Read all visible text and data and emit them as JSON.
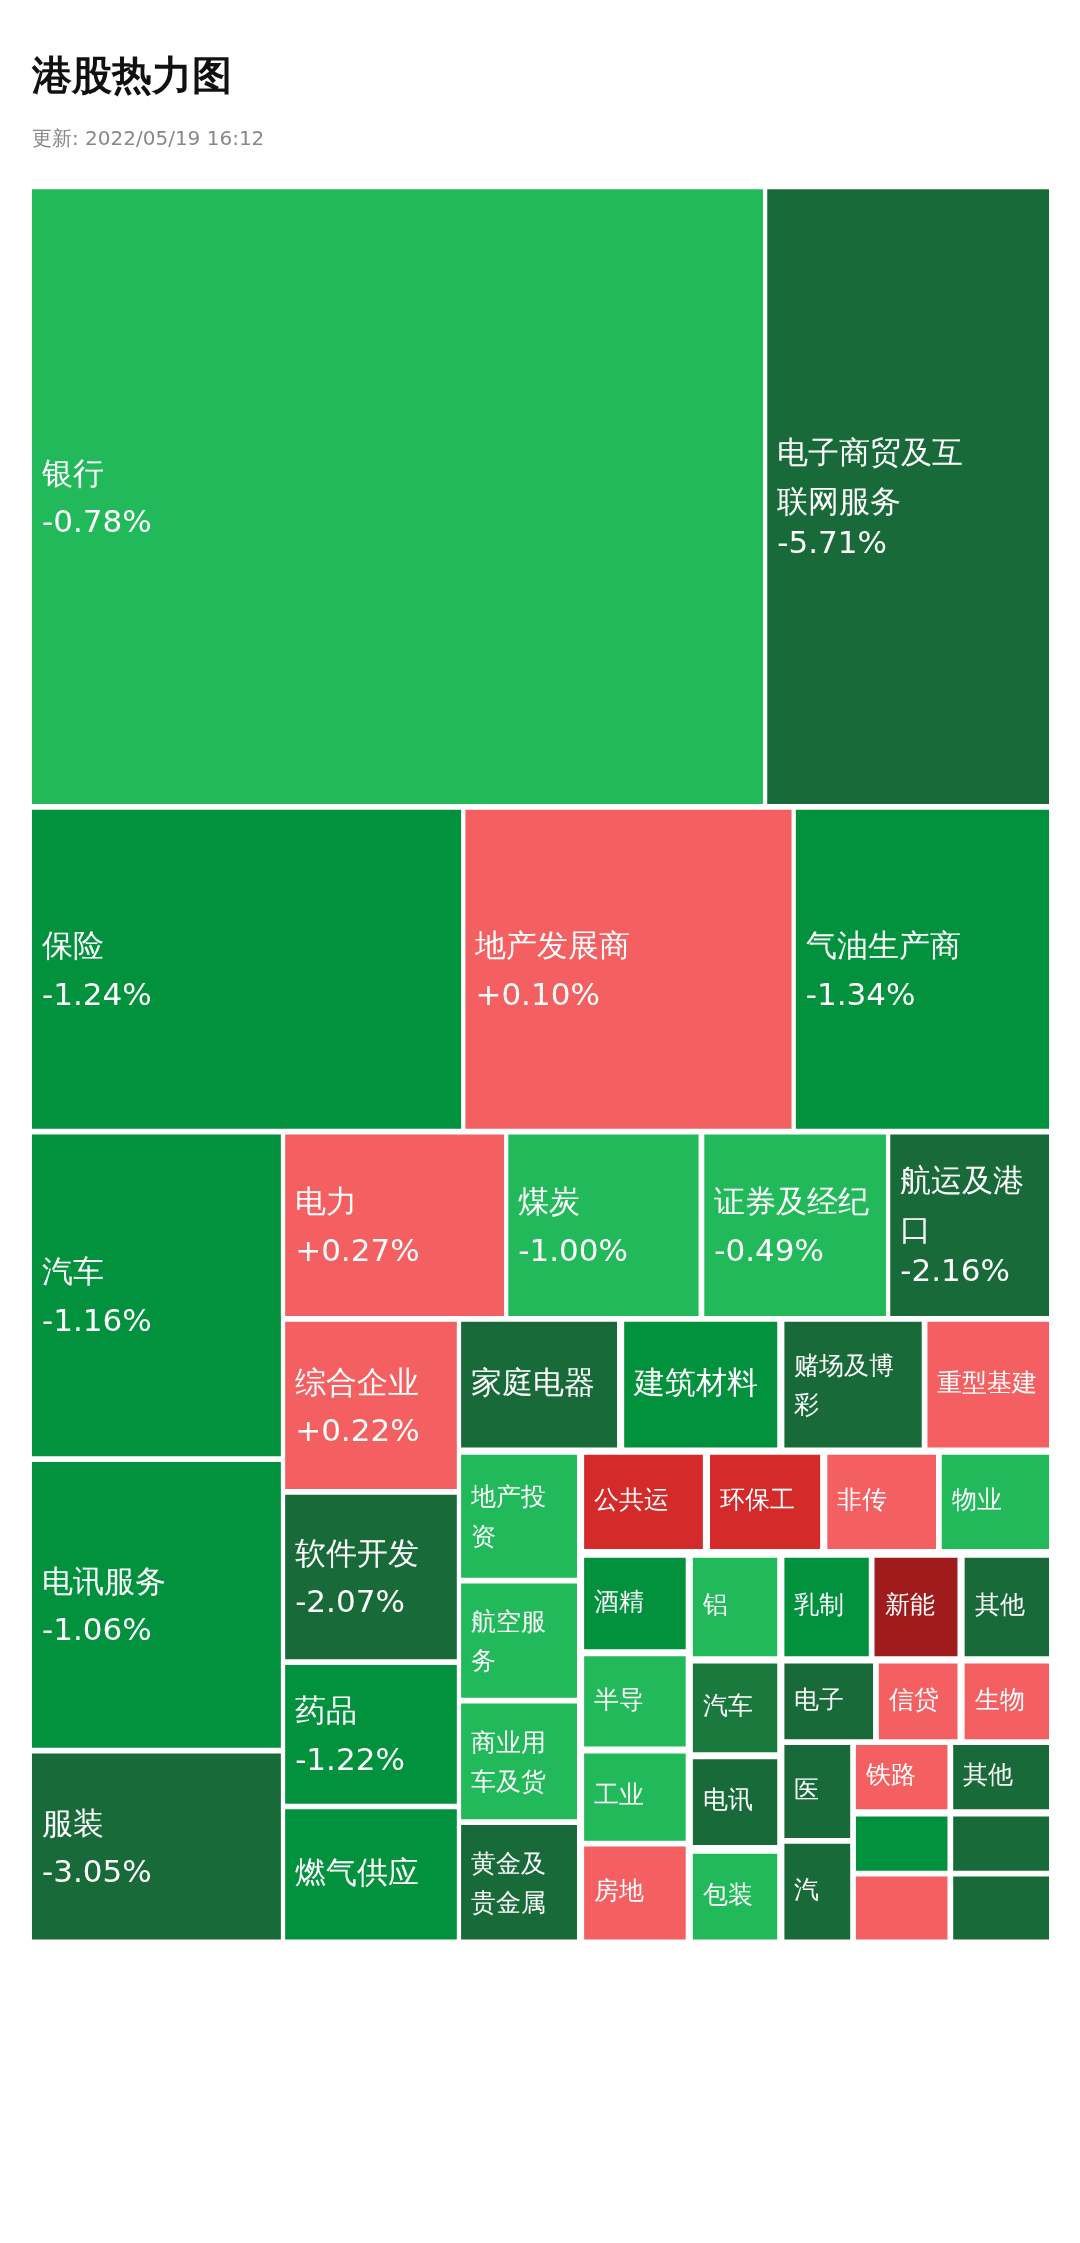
{
  "chart_data": {
    "type": "other",
    "title": "港股热力图",
    "subtitle": "更新: 2022/05/19  16:12",
    "categories": [
      "银行",
      "电子商贸及互联网服务",
      "保险",
      "地产发展商",
      "气油生产商",
      "汽车",
      "电讯服务",
      "服装",
      "电力",
      "煤炭",
      "证券及经纪",
      "航运及港口",
      "综合企业",
      "软件开发",
      "药品",
      "燃气供应",
      "家庭电器",
      "建筑材料",
      "赌场及博彩",
      "重型基建",
      "地产投资",
      "航空服务",
      "商业用车及货",
      "黄金及贵金属",
      "公共运",
      "环保工",
      "非传",
      "物业",
      "酒精",
      "半导",
      "工业",
      "房地",
      "铝",
      "汽车",
      "电讯",
      "包装",
      "乳制",
      "新能",
      "其他",
      "电子",
      "信贷",
      "生物",
      "医",
      "汽",
      "铁路",
      "其他",
      null,
      null,
      null,
      null
    ],
    "values": [
      -0.78,
      -5.71,
      -1.24,
      0.1,
      -1.34,
      -1.16,
      -1.06,
      -3.05,
      0.27,
      -1.0,
      -0.49,
      -2.16,
      0.22,
      -2.07,
      -1.22,
      null,
      null,
      null,
      null,
      null,
      null,
      null,
      null,
      null,
      null,
      null,
      null,
      null,
      null,
      null,
      null,
      null,
      null,
      null,
      null,
      null,
      null,
      null,
      null,
      null,
      null,
      null,
      null,
      null,
      null,
      null,
      null,
      null,
      null,
      null
    ],
    "value_labels": [
      "-0.78%",
      "-5.71%",
      "-1.24%",
      "+0.10%",
      "-1.34%",
      "-1.16%",
      "-1.06%",
      "-3.05%",
      "+0.27%",
      "-1.00%",
      "-0.49%",
      "-2.16%",
      "+0.22%",
      "-2.07%",
      "-1.22%",
      null,
      null,
      null,
      null,
      null,
      null,
      null,
      null,
      null,
      null,
      null,
      null,
      null,
      null,
      null,
      null,
      null,
      null,
      null,
      null,
      null,
      null,
      null,
      null,
      null,
      null,
      null,
      null,
      null,
      null,
      null,
      null,
      null,
      null,
      null
    ],
    "colors": [
      "#22b95a",
      "#186b39",
      "#02913c",
      "#f45f61",
      "#02913c",
      "#02913c",
      "#02913c",
      "#186b39",
      "#f45f61",
      "#22b95a",
      "#22b95a",
      "#186b39",
      "#f45f61",
      "#186b39",
      "#02913c",
      "#02913c",
      "#186b39",
      "#02913c",
      "#186b39",
      "#f45f61",
      "#22b95a",
      "#22b95a",
      "#22b95a",
      "#186b39",
      "#d42a2a",
      "#d42a2a",
      "#f45f61",
      "#22b95a",
      "#02913c",
      "#22b95a",
      "#22b95a",
      "#f45f61",
      "#22b95a",
      "#1a7a3e",
      "#186b39",
      "#22b95a",
      "#02913c",
      "#a01b1b",
      "#186b39",
      "#186b39",
      "#f45f61",
      "#f45f61",
      "#186b39",
      "#186b39",
      "#f45f61",
      "#186b39",
      "#02913c",
      "#186b39",
      "#f45f61",
      "#186b39"
    ]
  }
}
